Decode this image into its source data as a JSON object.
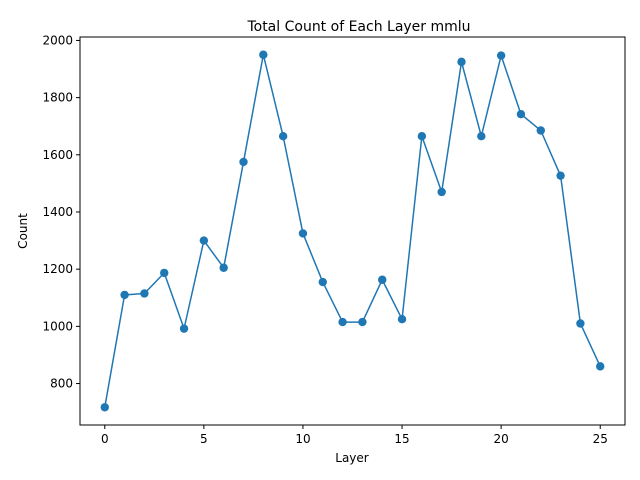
{
  "chart_data": {
    "type": "line",
    "title": "Total Count of Each Layer mmlu",
    "xlabel": "Layer",
    "ylabel": "Count",
    "x": [
      0,
      1,
      2,
      3,
      4,
      5,
      6,
      7,
      8,
      9,
      10,
      11,
      12,
      13,
      14,
      15,
      16,
      17,
      18,
      19,
      20,
      21,
      22,
      23,
      24,
      25
    ],
    "series": [
      {
        "values": [
          717,
          1110,
          1115,
          1187,
          992,
          1300,
          1205,
          1575,
          1950,
          1665,
          1325,
          1155,
          1015,
          1015,
          1163,
          1025,
          1665,
          1470,
          1925,
          1665,
          1947,
          1742,
          1685,
          1527,
          1010,
          860
        ],
        "color": "#1f77b4",
        "marker": "circle"
      }
    ],
    "xticks": [
      "0",
      "5",
      "10",
      "15",
      "20",
      "25"
    ],
    "yticks": [
      "800",
      "1000",
      "1200",
      "1400",
      "1600",
      "1800",
      "2000"
    ],
    "xlim": [
      -1.25,
      26.25
    ],
    "ylim": [
      655,
      2012
    ],
    "grid": false,
    "legend": false
  }
}
